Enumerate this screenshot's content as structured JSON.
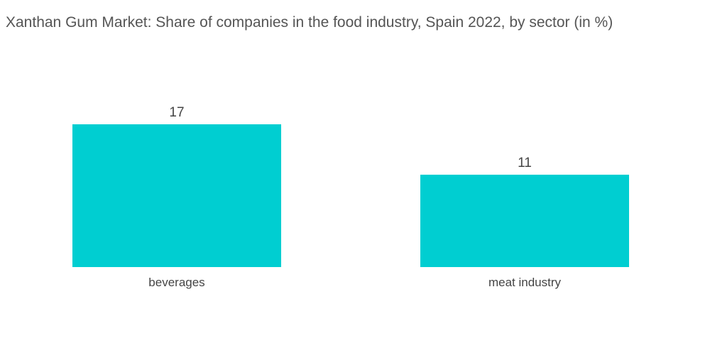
{
  "chart_data": {
    "type": "bar",
    "title": "Xanthan Gum Market: Share of companies in the food industry, Spain 2022, by sector (in %)",
    "categories": [
      "beverages",
      "meat industry"
    ],
    "values": [
      17,
      11
    ],
    "data_labels": [
      "17",
      "11"
    ],
    "xlabel": "",
    "ylabel": "",
    "ylim": [
      0,
      17
    ],
    "grid": false,
    "legend": "none",
    "bar_color": "#00CED1"
  }
}
